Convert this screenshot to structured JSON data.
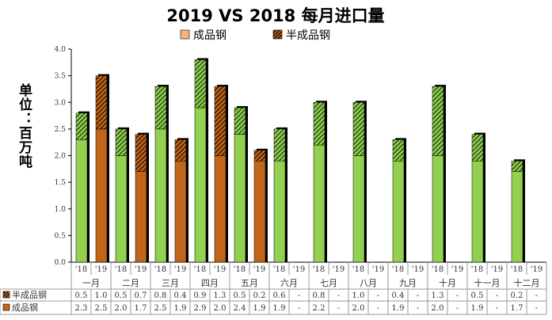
{
  "chart_data": {
    "type": "bar",
    "title": "2019 VS 2018 每月进口量",
    "ylabel": "单位：百万吨",
    "ylim": [
      0,
      4.0
    ],
    "yticks": [
      "0.0",
      "0.5",
      "1.0",
      "1.5",
      "2.0",
      "2.5",
      "3.0",
      "3.5",
      "4.0"
    ],
    "months": [
      "一月",
      "二月",
      "三月",
      "四月",
      "五月",
      "六月",
      "七月",
      "八月",
      "九月",
      "十月",
      "十一月",
      "十二月"
    ],
    "years": [
      "'18",
      "'19"
    ],
    "legend": [
      "成品钢",
      "半成品钢"
    ],
    "legend_position": "top",
    "series": [
      {
        "name": "半成品钢",
        "values": [
          [
            "0.5",
            "1.0"
          ],
          [
            "0.5",
            "0.7"
          ],
          [
            "0.8",
            "0.4"
          ],
          [
            "0.9",
            "1.3"
          ],
          [
            "0.5",
            "0.2"
          ],
          [
            "0.6",
            "-"
          ],
          [
            "0.8",
            "-"
          ],
          [
            "1.0",
            "-"
          ],
          [
            "0.4",
            "-"
          ],
          [
            "1.3",
            "-"
          ],
          [
            "0.5",
            "-"
          ],
          [
            "0.2",
            "-"
          ]
        ]
      },
      {
        "name": "成品钢",
        "values": [
          [
            "2.3",
            "2.5"
          ],
          [
            "2.0",
            "1.7"
          ],
          [
            "2.5",
            "1.9"
          ],
          [
            "2.9",
            "2.0"
          ],
          [
            "2.4",
            "1.9"
          ],
          [
            "1.9",
            "-"
          ],
          [
            "2.2",
            "-"
          ],
          [
            "2.0",
            "-"
          ],
          [
            "1.9",
            "-"
          ],
          [
            "2.0",
            "-"
          ],
          [
            "1.9",
            "-"
          ],
          [
            "1.7",
            "-"
          ]
        ]
      }
    ],
    "colors": {
      "y2018": "#92D050",
      "y2019": "#C0651A",
      "legend_finished": "#F4B183"
    }
  }
}
